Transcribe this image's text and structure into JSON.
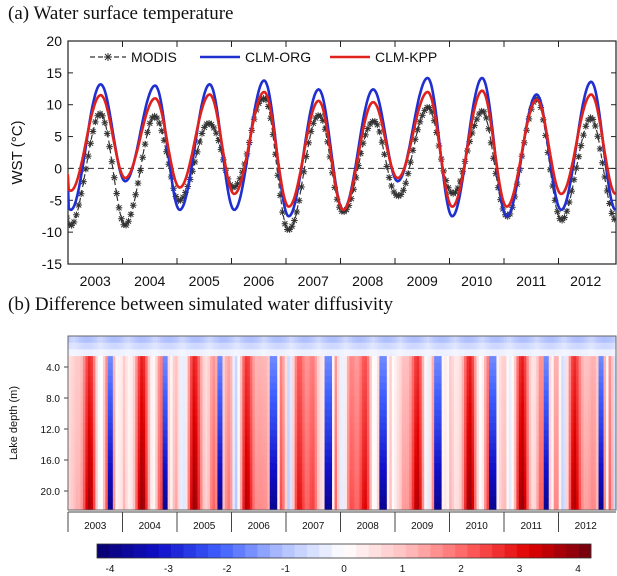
{
  "panel_a": {
    "title": "(a) Water surface temperature",
    "chart_data": {
      "type": "line",
      "ylabel": "WST (°C)",
      "ylim": [
        -15,
        20
      ],
      "yticks": [
        -15,
        -10,
        -5,
        0,
        5,
        10,
        15,
        20
      ],
      "year_labels": [
        "2003",
        "2004",
        "2005",
        "2006",
        "2007",
        "2008",
        "2009",
        "2010",
        "2011",
        "2012"
      ],
      "legend_position": "top",
      "zero_line": "dashed",
      "series": [
        {
          "name": "MODIS",
          "color": "#333333",
          "marker": "asterisk",
          "winter_min": [
            -8.8,
            -8.8,
            -5.0,
            -3.0,
            -9.8,
            -7.0,
            -4.5,
            -4.0,
            -7.5,
            -8.0
          ],
          "summer_max": [
            8.5,
            8.2,
            7.2,
            11.2,
            8.5,
            7.5,
            9.6,
            8.9,
            10.8,
            7.8
          ]
        },
        {
          "name": "CLM-ORG",
          "color": "#1f2fd0",
          "winter_min": [
            -6.5,
            -2.0,
            -6.5,
            -6.5,
            -7.5,
            -6.5,
            -2.0,
            -7.5,
            -7.5,
            -6.5
          ],
          "summer_max": [
            13.2,
            13.0,
            13.2,
            13.8,
            12.4,
            12.4,
            14.2,
            14.2,
            11.6,
            13.6
          ]
        },
        {
          "name": "CLM-KPP",
          "color": "#e0221d",
          "winter_min": [
            -3.5,
            -1.5,
            -3.0,
            -4.0,
            -6.0,
            -6.5,
            -1.5,
            -6.0,
            -6.0,
            -4.0
          ],
          "summer_max": [
            11.5,
            11.0,
            11.6,
            12.0,
            10.6,
            10.4,
            12.0,
            12.2,
            10.8,
            11.6
          ]
        }
      ]
    }
  },
  "panel_b": {
    "title": "(b) Difference between simulated water diffusivity",
    "chart_data": {
      "type": "heatmap",
      "ylabel": "Lake depth (m)",
      "ytick_labels": [
        "4.0",
        "8.0",
        "12.0",
        "16.0",
        "20.0"
      ],
      "year_labels": [
        "2003",
        "2004",
        "2005",
        "2006",
        "2007",
        "2008",
        "2009",
        "2010",
        "2011",
        "2012"
      ],
      "colorbar": {
        "tick_labels": [
          "-4",
          "-3",
          "-2",
          "-1",
          "0",
          "1",
          "2",
          "3",
          "4"
        ],
        "range": [
          -4,
          4
        ],
        "colormap": [
          "#08006e",
          "#1010c8",
          "#4060ff",
          "#b0c0ff",
          "#ffffff",
          "#ffc0c0",
          "#ff6060",
          "#e00000",
          "#700010"
        ]
      }
    }
  }
}
